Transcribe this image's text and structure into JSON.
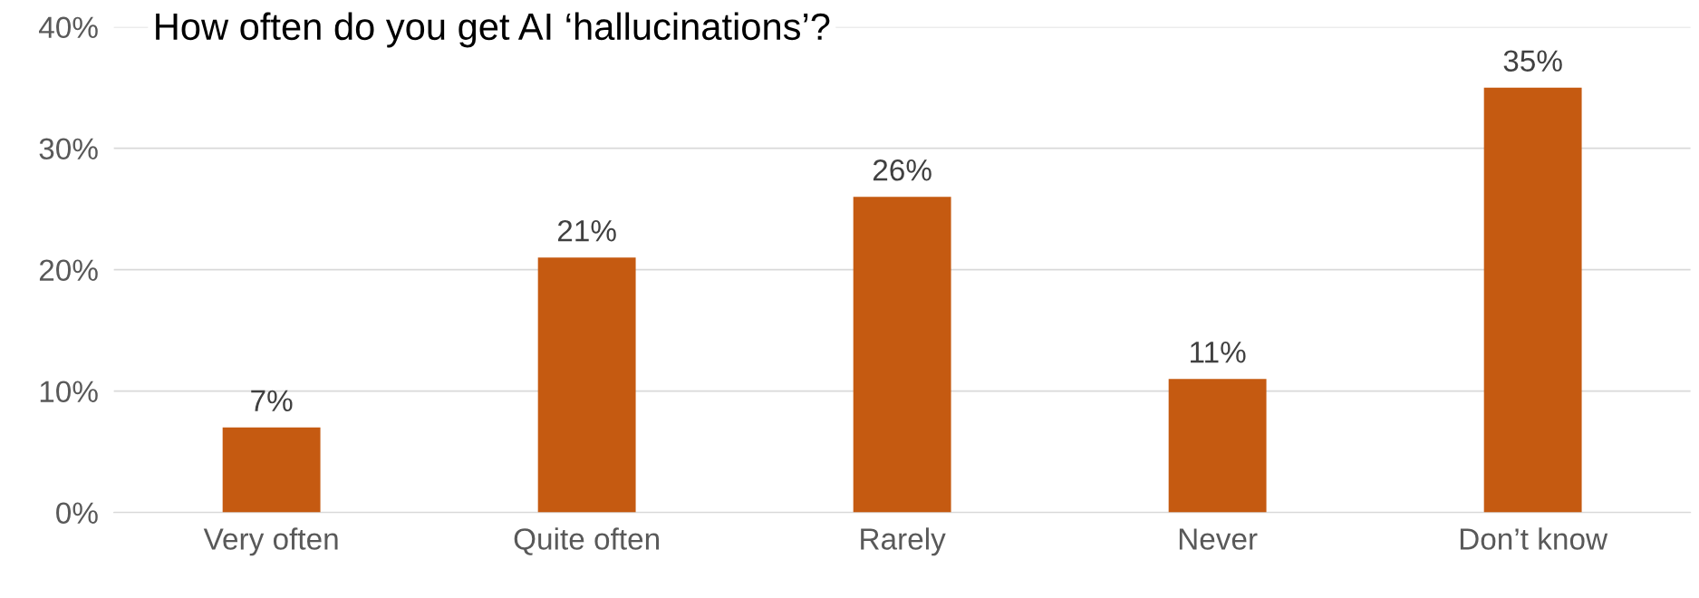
{
  "chart_data": {
    "type": "bar",
    "title": "How often do you get AI ‘hallucinations’?",
    "categories": [
      "Very often",
      "Quite often",
      "Rarely",
      "Never",
      "Don’t know"
    ],
    "values": [
      7,
      21,
      26,
      11,
      35
    ],
    "value_labels": [
      "7%",
      "21%",
      "26%",
      "11%",
      "35%"
    ],
    "color": "#c55a11",
    "ylim": [
      0,
      40
    ],
    "yticks": [
      {
        "value": 0,
        "label": "0%"
      },
      {
        "value": 10,
        "label": "10%"
      },
      {
        "value": 20,
        "label": "20%"
      },
      {
        "value": 30,
        "label": "30%"
      },
      {
        "value": 40,
        "label": "40%"
      }
    ],
    "grid": "y"
  }
}
